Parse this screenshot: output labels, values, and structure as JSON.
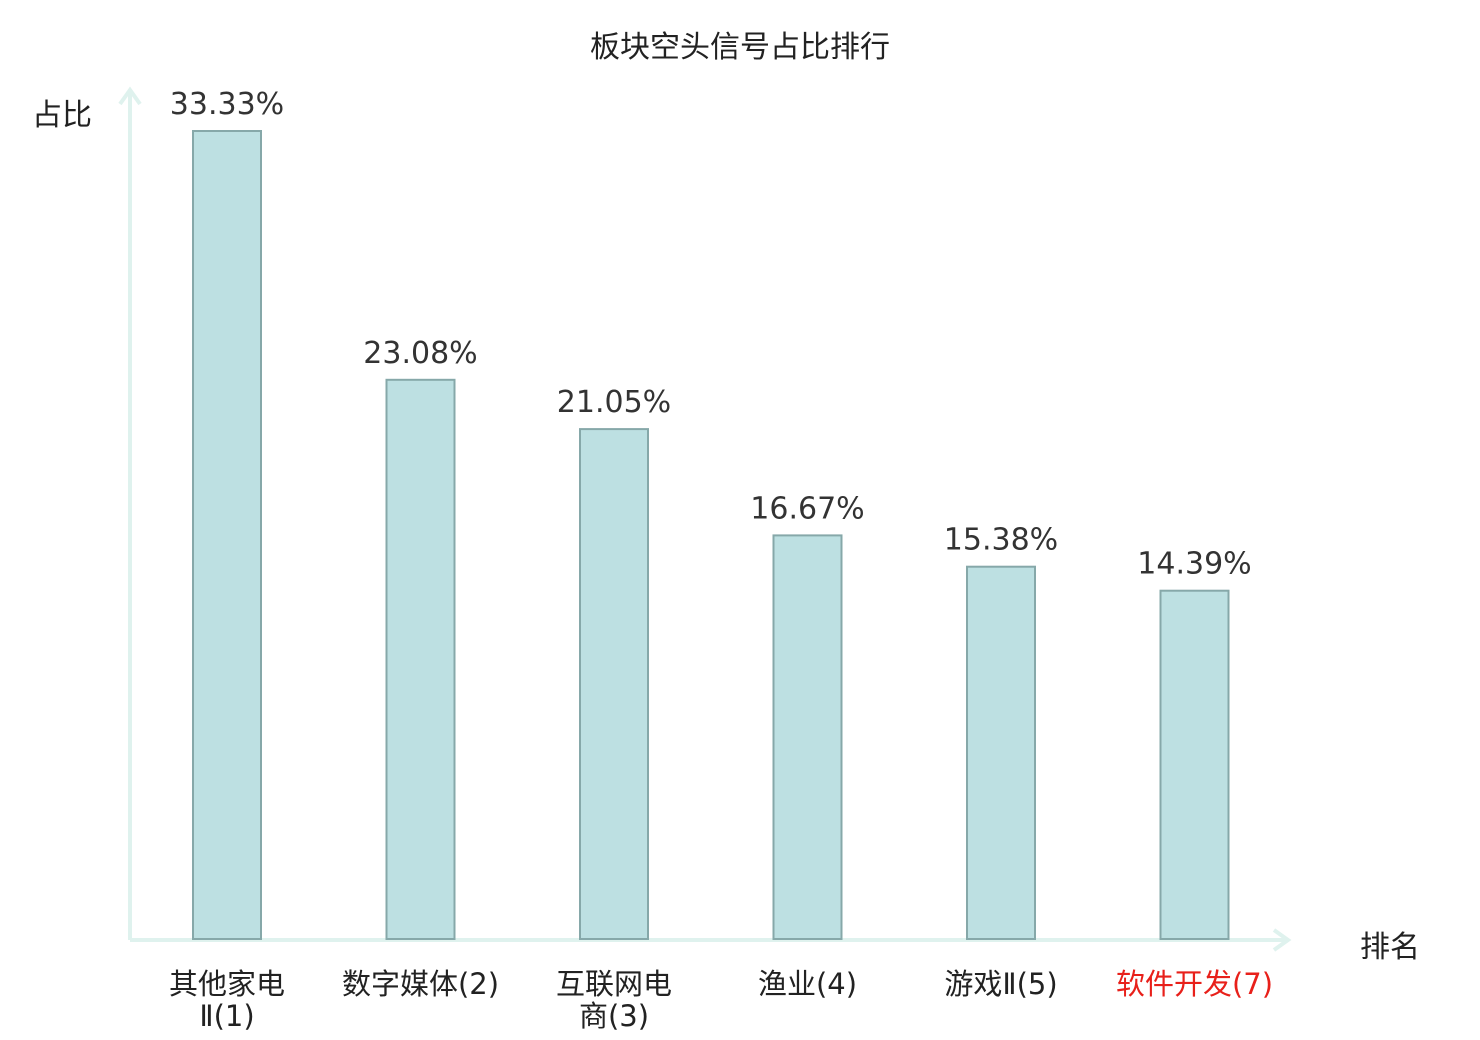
{
  "chart_data": {
    "type": "bar",
    "title": "板块空头信号占比排行",
    "ylabel": "占比",
    "xlabel": "排名",
    "categories": [
      {
        "lines": [
          "其他家电",
          "Ⅱ(1)"
        ],
        "highlight": false
      },
      {
        "lines": [
          "数字媒体(2)"
        ],
        "highlight": false
      },
      {
        "lines": [
          "互联网电",
          "商(3)"
        ],
        "highlight": false
      },
      {
        "lines": [
          "渔业(4)"
        ],
        "highlight": false
      },
      {
        "lines": [
          "游戏Ⅱ(5)"
        ],
        "highlight": false
      },
      {
        "lines": [
          "软件开发(7)"
        ],
        "highlight": true
      }
    ],
    "values": [
      33.33,
      23.08,
      21.05,
      16.67,
      15.38,
      14.39
    ],
    "value_labels": [
      "33.33%",
      "23.08%",
      "21.05%",
      "16.67%",
      "15.38%",
      "14.39%"
    ],
    "ylim": [
      0,
      33.33
    ],
    "grid": false,
    "colors": {
      "bar_fill": "#bde0e2",
      "bar_stroke": "#86a8a9",
      "axis": "#dff2ee",
      "label": "#333333",
      "highlight_label": "#e8201a"
    }
  }
}
